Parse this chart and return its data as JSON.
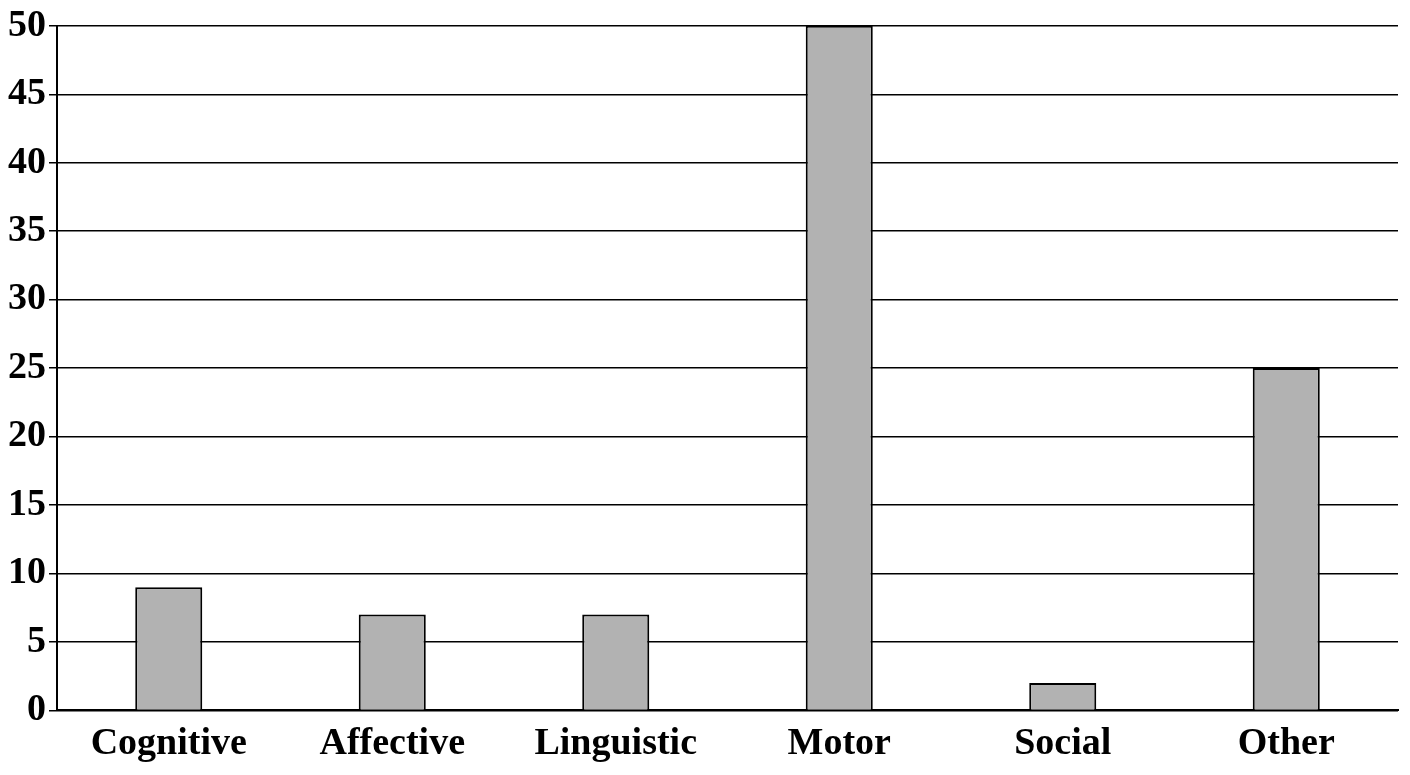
{
  "chart_data": {
    "type": "bar",
    "categories": [
      "Cognitive",
      "Affective",
      "Linguistic",
      "Motor",
      "Social",
      "Other"
    ],
    "values": [
      9,
      7,
      7,
      50,
      2,
      25
    ],
    "color": "#b2b2b2",
    "ylim": [
      0,
      50
    ],
    "yticks": [
      0,
      5,
      10,
      15,
      20,
      25,
      30,
      35,
      40,
      45,
      50
    ],
    "grid": "y",
    "legend": false
  }
}
